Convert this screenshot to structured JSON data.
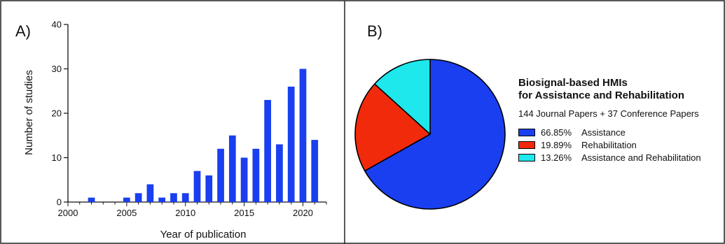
{
  "panels": {
    "a_label": "A)",
    "b_label": "B)"
  },
  "chart_data": [
    {
      "type": "bar",
      "xlabel": "Year of publication",
      "ylabel": "Number of studies",
      "x": [
        2002,
        2005,
        2006,
        2007,
        2008,
        2009,
        2010,
        2011,
        2012,
        2013,
        2014,
        2015,
        2016,
        2017,
        2018,
        2019,
        2020,
        2021
      ],
      "values": [
        1,
        1,
        2,
        4,
        1,
        2,
        2,
        7,
        6,
        12,
        15,
        10,
        12,
        23,
        13,
        26,
        30,
        14
      ],
      "xlim": [
        2000,
        2022
      ],
      "ylim": [
        0,
        40
      ],
      "xticks": [
        2000,
        2005,
        2010,
        2015,
        2020
      ],
      "yticks": [
        0,
        10,
        20,
        30,
        40
      ],
      "grid": false,
      "color": "#1a3ff0"
    },
    {
      "type": "pie",
      "title": "Biosignal-based HMIs",
      "title_line2": "for Assistance and Rehabilitation",
      "subtitle": "144 Journal Papers + 37 Conference Papers",
      "legend_position": "right",
      "slices": [
        {
          "label": "Assistance",
          "pct_label": "66.85%",
          "value": 66.85,
          "color": "#1a3ff0"
        },
        {
          "label": "Rehabilitation",
          "pct_label": "19.89%",
          "value": 19.89,
          "color": "#f22a0c"
        },
        {
          "label": "Assistance and Rehabilitation",
          "pct_label": "13.26%",
          "value": 13.26,
          "color": "#1ee8ec"
        }
      ]
    }
  ]
}
